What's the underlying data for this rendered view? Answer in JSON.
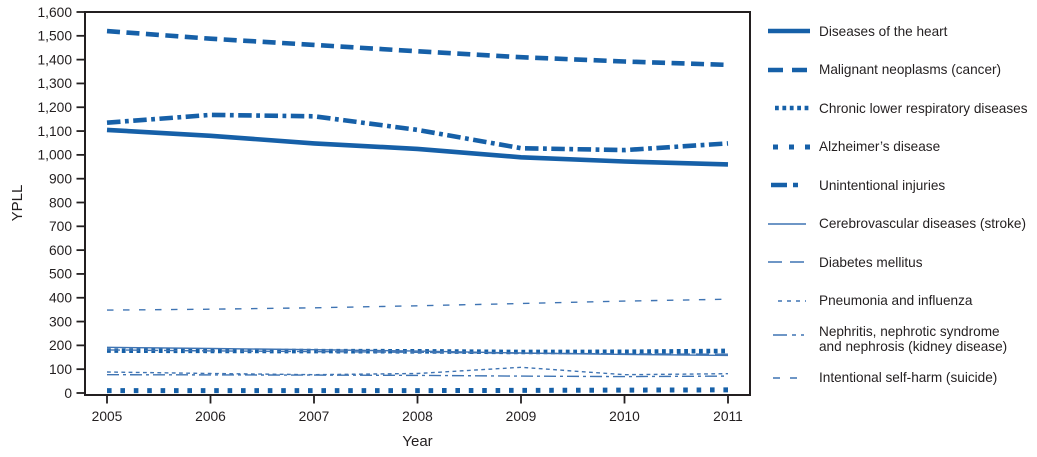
{
  "figure": {
    "background": "#ffffff",
    "text_color": "#231f20",
    "thick_line_color": "#1660a8",
    "thin_line_color": "#3f74b3"
  },
  "chart_data": {
    "type": "line",
    "xlabel": "Year",
    "ylabel": "YPLL",
    "x": [
      2005,
      2006,
      2007,
      2008,
      2009,
      2010,
      2011
    ],
    "ylim": [
      0,
      1600
    ],
    "ytick_step": 100,
    "grid": false,
    "legend_position": "right",
    "series": [
      {
        "name": "Diseases of the heart",
        "style": "thick-solid",
        "values": [
          1105,
          1080,
          1048,
          1025,
          990,
          972,
          960
        ]
      },
      {
        "name": "Malignant neoplasms (cancer)",
        "style": "thick-dash",
        "values": [
          1520,
          1488,
          1462,
          1435,
          1410,
          1392,
          1378
        ]
      },
      {
        "name": "Chronic lower respiratory diseases",
        "style": "thick-dot",
        "values": [
          178,
          177,
          176,
          175,
          172,
          173,
          177
        ]
      },
      {
        "name": "Alzheimer’s disease",
        "style": "thick-sparse-dot",
        "values": [
          10,
          10,
          10,
          10,
          11,
          12,
          13
        ]
      },
      {
        "name": "Unintentional injuries",
        "style": "thick-dash-dot",
        "values": [
          1135,
          1168,
          1162,
          1105,
          1028,
          1020,
          1048
        ]
      },
      {
        "name": "Cerebrovascular diseases (stroke)",
        "style": "thin-solid",
        "values": [
          192,
          187,
          182,
          176,
          168,
          162,
          158
        ]
      },
      {
        "name": "Diabetes mellitus",
        "style": "thin-long-dash",
        "values": [
          181,
          177,
          174,
          171,
          167,
          164,
          163
        ]
      },
      {
        "name": "Pneumonia and influenza",
        "style": "thin-short-dash",
        "values": [
          88,
          82,
          77,
          82,
          108,
          77,
          81
        ]
      },
      {
        "name": "Nephritis, nephrotic syndrome and nephrosis (kidney disease)",
        "style": "thin-dash-dot",
        "label_lines": [
          "Nephritis, nephrotic syndrome",
          "and nephrosis (kidney disease)"
        ],
        "values": [
          77,
          76,
          75,
          74,
          71,
          69,
          71
        ]
      },
      {
        "name": "Intentional self-harm (suicide)",
        "style": "thin-sparse-dash",
        "values": [
          348,
          352,
          358,
          366,
          376,
          386,
          394
        ]
      }
    ]
  }
}
